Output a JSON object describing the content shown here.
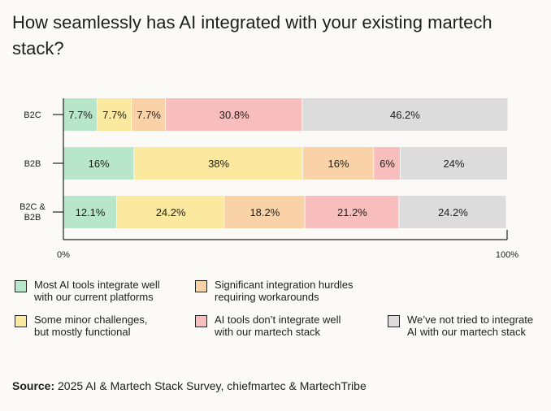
{
  "title": "How seamlessly has AI integrated with your existing martech stack?",
  "chart_data": {
    "type": "bar",
    "orientation": "horizontal",
    "stacked": true,
    "categories": [
      "B2C",
      "B2B",
      "B2C & B2B"
    ],
    "series": [
      {
        "name": "Most AI tools integrate well with our current platforms",
        "color": "#B8E6CA",
        "values": [
          7.7,
          16,
          12.1
        ],
        "labels": [
          "7.7%",
          "16%",
          "12.1%"
        ]
      },
      {
        "name": "Some minor challenges, but mostly functional",
        "color": "#FBE9A0",
        "values": [
          7.7,
          38,
          24.2
        ],
        "labels": [
          "7.7%",
          "38%",
          "24.2%"
        ]
      },
      {
        "name": "Significant integration hurdles requiring workarounds",
        "color": "#FAD2A8",
        "values": [
          7.7,
          16,
          18.2
        ],
        "labels": [
          "7.7%",
          "16%",
          "18.2%"
        ]
      },
      {
        "name": "AI tools don't integrate well with our martech stack",
        "color": "#F8BDBD",
        "values": [
          30.8,
          6,
          21.2
        ],
        "labels": [
          "30.8%",
          "6%",
          "21.2%"
        ]
      },
      {
        "name": "We've not tried to integrate AI with our martech stack",
        "color": "#DCDCDC",
        "values": [
          46.2,
          24,
          24.2
        ],
        "labels": [
          "46.2%",
          "24%",
          "24.2%"
        ]
      }
    ],
    "xlim": [
      0,
      100
    ],
    "x_tick_labels": [
      "0%",
      "100%"
    ],
    "legend": [
      {
        "label": "Most AI tools integrate well\nwith our current platforms",
        "color": "#B8E6CA"
      },
      {
        "label": "Significant integration hurdles\nrequiring workarounds",
        "color": "#FAD2A8"
      },
      {
        "label": "Some minor challenges,\nbut mostly functional",
        "color": "#FBE9A0"
      },
      {
        "label": "AI tools don’t integrate well\nwith our martech stack",
        "color": "#F8BDBD"
      },
      {
        "label": "We’ve not tried to integrate\nAI with our martech stack",
        "color": "#DCDCDC"
      }
    ]
  },
  "source": {
    "label": "Source:",
    "text": " 2025 AI & Martech Stack Survey, chiefmartec & MartechTribe"
  }
}
